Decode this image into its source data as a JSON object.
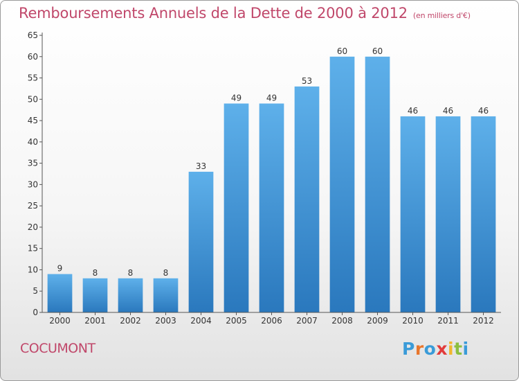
{
  "title": "Remboursements Annuels de la Dette de 2000 à 2012",
  "subtitle": "(en milliers d'€)",
  "commune": "COCUMONT",
  "brand": {
    "letters": [
      "P",
      "r",
      "o",
      "x",
      "i",
      "t",
      "i"
    ],
    "colors": [
      "#3a9bd8",
      "#e8762c",
      "#3a9bd8",
      "#e23b3b",
      "#f2b62d",
      "#8cbf3f",
      "#3a9bd8"
    ]
  },
  "chart_data": {
    "type": "bar",
    "categories": [
      "2000",
      "2001",
      "2002",
      "2003",
      "2004",
      "2005",
      "2006",
      "2007",
      "2008",
      "2009",
      "2010",
      "2011",
      "2012"
    ],
    "values": [
      9,
      8,
      8,
      8,
      33,
      49,
      49,
      53,
      60,
      60,
      46,
      46,
      46
    ],
    "title": "Remboursements Annuels de la Dette de 2000 à 2012",
    "subtitle": "(en milliers d'€)",
    "xlabel": "",
    "ylabel": "",
    "ylim": [
      0,
      65
    ],
    "ytick_step": 5,
    "grid": false,
    "bar_color": "#4a9fde"
  }
}
